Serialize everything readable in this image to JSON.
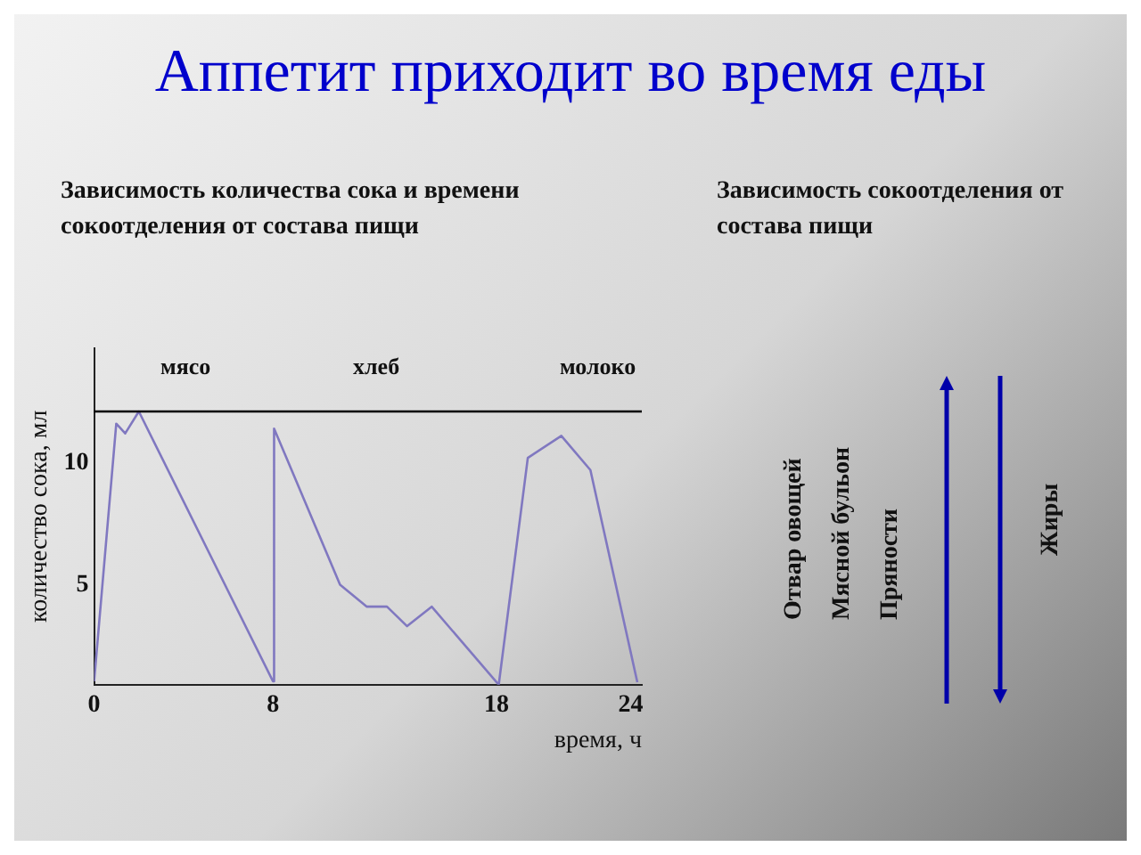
{
  "chart_data": {
    "type": "line",
    "title": "Аппетит приходит во время еды",
    "subtitle": "Зависимость количества сока и времени сокоотделения от состава пищи",
    "xlabel": "время, ч",
    "ylabel": "количество сока, мл",
    "x": [
      0,
      0.99,
      1.39,
      2.0,
      8,
      8.05,
      11.0,
      12.2,
      13.1,
      14.0,
      15.1,
      18.1,
      19.4,
      20.9,
      22.2,
      24.3
    ],
    "series": [
      {
        "color": "#8078c0",
        "values": [
          1.04,
          11.6,
          11.2,
          12.1,
          1.04,
          11.4,
          5.0,
          4.1,
          4.1,
          3.3,
          4.1,
          0.9,
          10.2,
          11.1,
          9.7,
          1.0
        ]
      }
    ],
    "xlim": [
      0,
      24.5
    ],
    "ylim": [
      0.9,
      14.7
    ],
    "xticks": [
      0,
      8,
      18,
      24
    ],
    "yticks": [
      5,
      10
    ],
    "ref_lines": [
      {
        "axis": "y",
        "value": 12.1,
        "color": "#000000"
      }
    ],
    "grid": false,
    "marker": "none",
    "line_style": "solid",
    "annotations": [
      "мясо",
      "хлеб",
      "молоко",
      "Зависимость сокоотделения от состава пищи",
      "Отвар овощей",
      "Мясной бульон",
      "Пряности",
      "Жиры"
    ]
  }
}
